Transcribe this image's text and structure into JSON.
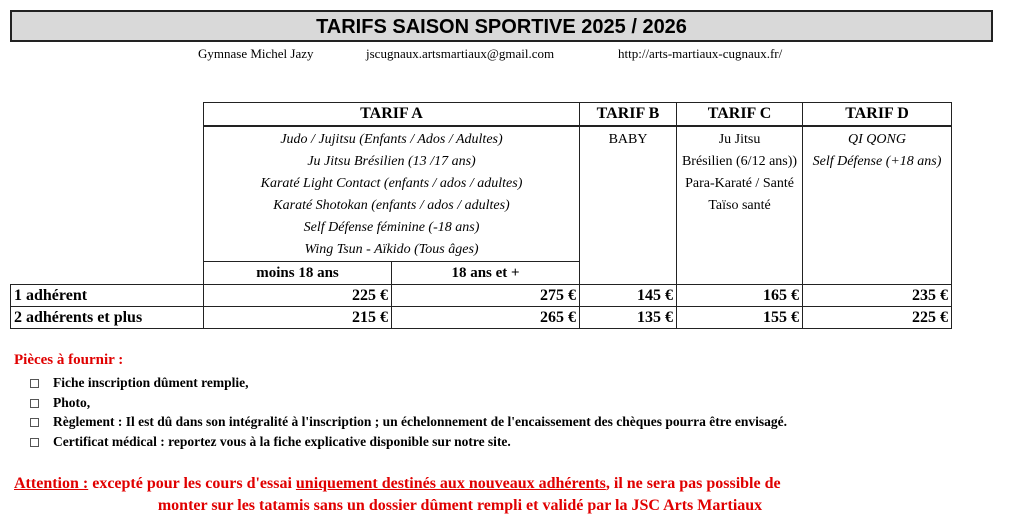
{
  "title": "TARIFS SAISON SPORTIVE 2025 / 2026",
  "contact": {
    "place": "Gymnase Michel Jazy",
    "email": "jscugnaux.artsmartiaux@gmail.com",
    "website": "http://arts-martiaux-cugnaux.fr/"
  },
  "table": {
    "headers": [
      "TARIF A",
      "TARIF B",
      "TARIF C",
      "TARIF D"
    ],
    "tarif_a_activities": [
      "Judo / Jujitsu (Enfants / Ados / Adultes)",
      "Ju Jitsu Brésilien (13 /17 ans)",
      "Karaté Light Contact (enfants / ados / adultes)",
      "Karaté Shotokan (enfants / ados / adultes)",
      "Self Défense féminine (-18 ans)",
      "Wing Tsun - Aïkido (Tous âges)"
    ],
    "tarif_b_activities": [
      "BABY"
    ],
    "tarif_c_activities": [
      "Ju Jitsu",
      "Brésilien (6/12 ans))",
      "Para-Karaté / Santé",
      "Taïso santé"
    ],
    "tarif_d_activities": [
      "QI QONG",
      "Self Défense (+18 ans)"
    ],
    "tarif_a_subheaders": [
      "moins 18 ans",
      "18 ans et +"
    ],
    "rows": [
      {
        "label": "1 adhérent",
        "prices": [
          "225 €",
          "275 €",
          "145 €",
          "165 €",
          "235 €"
        ]
      },
      {
        "label": "2 adhérents et plus",
        "prices": [
          "215 €",
          "265 €",
          "135 €",
          "155 €",
          "225 €"
        ]
      }
    ]
  },
  "pieces": {
    "title": "Pièces à fournir :",
    "items": [
      "Fiche inscription dûment remplie,",
      "Photo,",
      "Règlement : Il est dû dans son intégralité à l'inscription ; un échelonnement de l'encaissement des chèques pourra être envisagé.",
      "Certificat médical : reportez vous à la fiche explicative disponible sur notre site."
    ]
  },
  "attention": {
    "label": "Attention :",
    "text1": " excepté pour les cours d'essai ",
    "underlined": "uniquement destinés aux nouveaux adhérents",
    "text2": ", il ne sera pas possible de",
    "line2": "monter sur les tatamis sans un dossier dûment rempli et validé par la JSC Arts Martiaux"
  },
  "colors": {
    "warning": "#e00000",
    "title_bg": "#d9d9d9"
  }
}
